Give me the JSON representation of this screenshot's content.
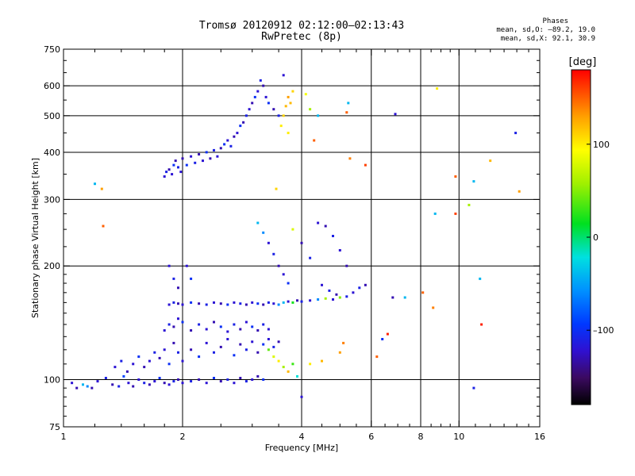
{
  "header": {
    "title_line1": "Tromsø 20120912 02:12:00–02:13:43",
    "title_line2": "RwPretec (8p)",
    "stats_title": "Phases",
    "stats_o": "mean, sd,O: –89.2, 19.0",
    "stats_x": "mean, sd,X:  92.1, 30.9"
  },
  "chart_data": {
    "type": "scatter",
    "title": "Tromsø 20120912 02:12:00–02:13:43",
    "subtitle": "RwPretec (8p)",
    "xlabel": "Frequency [MHz]",
    "ylabel": "Stationary phase Virtual Height [km]",
    "x_scale": "log",
    "y_scale": "log",
    "xlim": [
      1,
      16
    ],
    "ylim": [
      75,
      750
    ],
    "x_ticks": [
      1,
      2,
      4,
      6,
      8,
      10,
      16
    ],
    "x_tick_labels": [
      "1",
      "2",
      "4",
      "6",
      "8",
      "10",
      "16"
    ],
    "x_grid": [
      2,
      4,
      6,
      8,
      10
    ],
    "y_ticks": [
      75,
      100,
      200,
      300,
      400,
      500,
      600,
      750
    ],
    "y_tick_labels": [
      "75",
      "100",
      "200",
      "300",
      "400",
      "500",
      "600",
      "750"
    ],
    "y_grid": [
      100,
      200,
      300,
      400,
      500,
      600
    ],
    "grid": true,
    "colorbar": {
      "label": "[deg]",
      "range": [
        -180,
        180
      ],
      "ticks": [
        100,
        0,
        -100
      ],
      "tick_labels": [
        "100",
        "0",
        "–100"
      ]
    },
    "series": [
      {
        "points": [
          [
            1.05,
            98,
            -120
          ],
          [
            1.08,
            95,
            -130
          ],
          [
            1.12,
            97,
            -40
          ],
          [
            1.15,
            96,
            -60
          ],
          [
            1.18,
            95,
            -130
          ],
          [
            1.22,
            99,
            -120
          ],
          [
            1.28,
            101,
            -110
          ],
          [
            1.33,
            97,
            -130
          ],
          [
            1.38,
            96,
            -110
          ],
          [
            1.42,
            102,
            -90
          ],
          [
            1.46,
            98,
            -120
          ],
          [
            1.5,
            96,
            -130
          ],
          [
            1.55,
            100,
            -120
          ],
          [
            1.6,
            98,
            -110
          ],
          [
            1.65,
            97,
            -130
          ],
          [
            1.7,
            99,
            -120
          ],
          [
            1.75,
            101,
            -100
          ],
          [
            1.8,
            98,
            -130
          ],
          [
            1.85,
            97,
            -120
          ],
          [
            1.9,
            99,
            -110
          ],
          [
            1.95,
            100,
            -130
          ],
          [
            2.0,
            98,
            -120
          ],
          [
            2.1,
            99,
            -110
          ],
          [
            2.2,
            100,
            -130
          ],
          [
            2.3,
            98,
            -120
          ],
          [
            2.4,
            101,
            -100
          ],
          [
            2.5,
            99,
            -130
          ],
          [
            2.6,
            100,
            -110
          ],
          [
            2.7,
            98,
            -120
          ],
          [
            2.8,
            101,
            -130
          ],
          [
            2.9,
            99,
            -110
          ],
          [
            3.0,
            100,
            -120
          ],
          [
            3.1,
            102,
            -130
          ],
          [
            3.2,
            100,
            -100
          ],
          [
            1.35,
            108,
            -120
          ],
          [
            1.4,
            112,
            -110
          ],
          [
            1.45,
            105,
            -130
          ],
          [
            1.5,
            110,
            -120
          ],
          [
            1.55,
            115,
            -100
          ],
          [
            1.6,
            108,
            -130
          ],
          [
            1.65,
            112,
            -120
          ],
          [
            1.7,
            118,
            -110
          ],
          [
            1.75,
            114,
            -130
          ],
          [
            1.8,
            120,
            -120
          ],
          [
            1.85,
            110,
            -100
          ],
          [
            1.9,
            125,
            -130
          ],
          [
            1.95,
            118,
            -110
          ],
          [
            2.0,
            112,
            -120
          ],
          [
            2.1,
            120,
            -130
          ],
          [
            2.2,
            115,
            -100
          ],
          [
            2.3,
            125,
            -120
          ],
          [
            2.4,
            118,
            -110
          ],
          [
            2.5,
            122,
            -130
          ],
          [
            2.6,
            128,
            -120
          ],
          [
            2.7,
            116,
            -100
          ],
          [
            2.8,
            124,
            -130
          ],
          [
            2.9,
            120,
            -110
          ],
          [
            3.0,
            126,
            -120
          ],
          [
            3.1,
            118,
            -130
          ],
          [
            3.2,
            124,
            -100
          ],
          [
            3.3,
            128,
            -120
          ],
          [
            3.4,
            122,
            -110
          ],
          [
            3.5,
            126,
            -130
          ],
          [
            1.8,
            135,
            -120
          ],
          [
            1.85,
            140,
            -110
          ],
          [
            1.9,
            138,
            -130
          ],
          [
            1.95,
            145,
            -120
          ],
          [
            2.0,
            142,
            -100
          ],
          [
            2.1,
            135,
            -130
          ],
          [
            2.2,
            140,
            -110
          ],
          [
            2.3,
            136,
            -120
          ],
          [
            2.4,
            142,
            -130
          ],
          [
            2.5,
            138,
            -100
          ],
          [
            2.6,
            134,
            -120
          ],
          [
            2.7,
            140,
            -110
          ],
          [
            2.8,
            136,
            -130
          ],
          [
            2.9,
            142,
            -120
          ],
          [
            3.0,
            138,
            -100
          ],
          [
            3.1,
            135,
            -130
          ],
          [
            3.2,
            140,
            -110
          ],
          [
            3.3,
            136,
            -120
          ],
          [
            1.85,
            158,
            -120
          ],
          [
            1.9,
            160,
            -110
          ],
          [
            1.95,
            159,
            -130
          ],
          [
            2.0,
            158,
            -120
          ],
          [
            2.1,
            160,
            -100
          ],
          [
            2.2,
            159,
            -130
          ],
          [
            2.3,
            158,
            -110
          ],
          [
            2.4,
            160,
            -120
          ],
          [
            2.5,
            159,
            -130
          ],
          [
            2.6,
            158,
            -100
          ],
          [
            2.7,
            160,
            -120
          ],
          [
            2.8,
            159,
            -110
          ],
          [
            2.9,
            158,
            -130
          ],
          [
            3.0,
            160,
            -120
          ],
          [
            3.1,
            159,
            -100
          ],
          [
            3.2,
            158,
            -130
          ],
          [
            3.3,
            160,
            -110
          ],
          [
            3.4,
            159,
            -120
          ],
          [
            3.5,
            158,
            -60
          ],
          [
            3.6,
            160,
            -40
          ],
          [
            3.7,
            161,
            -120
          ],
          [
            3.8,
            160,
            20
          ],
          [
            3.9,
            162,
            -130
          ],
          [
            4.0,
            161,
            -110
          ],
          [
            4.2,
            162,
            -120
          ],
          [
            4.4,
            163,
            -60
          ],
          [
            4.6,
            164,
            60
          ],
          [
            4.8,
            163,
            -120
          ],
          [
            5.0,
            165,
            50
          ],
          [
            5.2,
            166,
            -110
          ],
          [
            5.4,
            170,
            -120
          ],
          [
            5.6,
            175,
            -110
          ],
          [
            5.8,
            178,
            -130
          ],
          [
            1.85,
            200,
            -120
          ],
          [
            1.9,
            185,
            -110
          ],
          [
            1.95,
            175,
            -130
          ],
          [
            2.05,
            200,
            -120
          ],
          [
            2.1,
            185,
            -100
          ],
          [
            3.1,
            260,
            -40
          ],
          [
            3.2,
            245,
            -60
          ],
          [
            3.3,
            230,
            -120
          ],
          [
            3.4,
            215,
            -110
          ],
          [
            3.5,
            200,
            -130
          ],
          [
            3.6,
            190,
            -120
          ],
          [
            3.7,
            180,
            -100
          ],
          [
            3.8,
            250,
            80
          ],
          [
            4.0,
            230,
            -130
          ],
          [
            4.2,
            210,
            -110
          ],
          [
            4.4,
            260,
            -120
          ],
          [
            4.6,
            255,
            -130
          ],
          [
            4.8,
            240,
            -110
          ],
          [
            5.0,
            220,
            -120
          ],
          [
            5.2,
            200,
            -130
          ],
          [
            4.5,
            178,
            -120
          ],
          [
            4.7,
            172,
            -110
          ],
          [
            4.9,
            168,
            -130
          ],
          [
            3.3,
            120,
            40
          ],
          [
            3.4,
            115,
            80
          ],
          [
            3.5,
            112,
            100
          ],
          [
            3.6,
            108,
            60
          ],
          [
            3.7,
            105,
            120
          ],
          [
            3.8,
            110,
            30
          ],
          [
            3.9,
            102,
            -20
          ],
          [
            4.0,
            90,
            -120
          ],
          [
            4.2,
            110,
            100
          ],
          [
            4.5,
            112,
            120
          ],
          [
            5.0,
            118,
            130
          ],
          [
            5.1,
            125,
            140
          ],
          [
            1.8,
            345,
            -120
          ],
          [
            1.82,
            355,
            -110
          ],
          [
            1.85,
            360,
            -130
          ],
          [
            1.88,
            350,
            -120
          ],
          [
            1.9,
            370,
            -100
          ],
          [
            1.92,
            380,
            -130
          ],
          [
            1.95,
            365,
            -110
          ],
          [
            1.98,
            355,
            -120
          ],
          [
            2.0,
            385,
            -130
          ],
          [
            2.05,
            370,
            -100
          ],
          [
            2.1,
            390,
            -120
          ],
          [
            2.15,
            375,
            -110
          ],
          [
            2.2,
            395,
            -130
          ],
          [
            2.25,
            380,
            -120
          ],
          [
            2.3,
            400,
            -100
          ],
          [
            2.35,
            385,
            -130
          ],
          [
            2.4,
            405,
            -110
          ],
          [
            2.45,
            390,
            -120
          ],
          [
            2.5,
            410,
            -130
          ],
          [
            2.55,
            420,
            -100
          ],
          [
            2.6,
            430,
            -120
          ],
          [
            2.65,
            415,
            -110
          ],
          [
            2.7,
            440,
            -130
          ],
          [
            2.75,
            450,
            -120
          ],
          [
            2.8,
            470,
            -100
          ],
          [
            2.85,
            480,
            -130
          ],
          [
            2.9,
            500,
            -110
          ],
          [
            2.95,
            520,
            -120
          ],
          [
            3.0,
            540,
            -130
          ],
          [
            3.05,
            560,
            -100
          ],
          [
            3.1,
            580,
            -120
          ],
          [
            3.15,
            620,
            -110
          ],
          [
            3.2,
            600,
            -130
          ],
          [
            3.25,
            560,
            -120
          ],
          [
            3.3,
            540,
            -100
          ],
          [
            3.4,
            520,
            -130
          ],
          [
            3.5,
            500,
            -110
          ],
          [
            3.6,
            640,
            -120
          ],
          [
            3.55,
            470,
            100
          ],
          [
            3.6,
            500,
            110
          ],
          [
            3.65,
            530,
            120
          ],
          [
            3.7,
            560,
            130
          ],
          [
            3.75,
            540,
            120
          ],
          [
            3.8,
            580,
            110
          ],
          [
            3.7,
            450,
            100
          ],
          [
            3.45,
            320,
            110
          ],
          [
            4.1,
            570,
            90
          ],
          [
            4.2,
            520,
            60
          ],
          [
            4.4,
            500,
            -40
          ],
          [
            4.3,
            430,
            150
          ],
          [
            5.25,
            540,
            -40
          ],
          [
            5.2,
            510,
            150
          ],
          [
            5.3,
            385,
            140
          ],
          [
            5.8,
            370,
            160
          ],
          [
            1.2,
            330,
            -40
          ],
          [
            1.25,
            320,
            130
          ],
          [
            1.26,
            255,
            150
          ],
          [
            6.9,
            505,
            -120
          ],
          [
            8.8,
            590,
            100
          ],
          [
            8.7,
            275,
            -40
          ],
          [
            9.8,
            345,
            150
          ],
          [
            9.8,
            275,
            160
          ],
          [
            10.6,
            290,
            60
          ],
          [
            10.9,
            335,
            -40
          ],
          [
            12.0,
            380,
            120
          ],
          [
            13.9,
            450,
            -110
          ],
          [
            14.2,
            315,
            130
          ],
          [
            11.3,
            185,
            -40
          ],
          [
            11.4,
            140,
            170
          ],
          [
            10.9,
            95,
            -110
          ],
          [
            6.2,
            115,
            150
          ],
          [
            6.6,
            132,
            170
          ],
          [
            6.4,
            128,
            -100
          ],
          [
            6.8,
            165,
            -130
          ],
          [
            7.3,
            165,
            -40
          ],
          [
            8.1,
            170,
            150
          ],
          [
            8.6,
            155,
            140
          ]
        ]
      }
    ]
  }
}
